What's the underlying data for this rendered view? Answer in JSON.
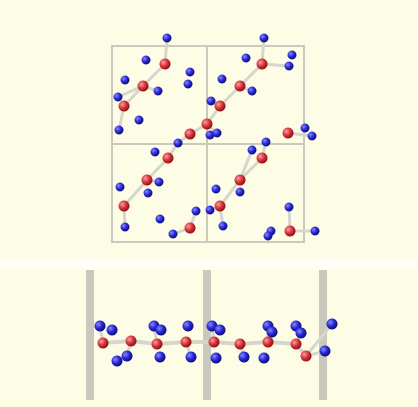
{
  "colors": {
    "background": "#fdfde6",
    "frame": "#cfcfc3",
    "cell_line": "#c9c9bd",
    "bond": "#d6d6cc",
    "red_atom": "#d8333a",
    "red_atom_light": "#f6a0a0",
    "blue_atom": "#2828d8",
    "blue_atom_light": "#8a8af6",
    "post": "#c8c8bc",
    "divider": "#ffffff"
  },
  "panels": [
    {
      "name": "top-view",
      "description_icon": "unit-cell-grid-2x2"
    },
    {
      "name": "side-view",
      "description_icon": "layer-side-projection"
    }
  ]
}
